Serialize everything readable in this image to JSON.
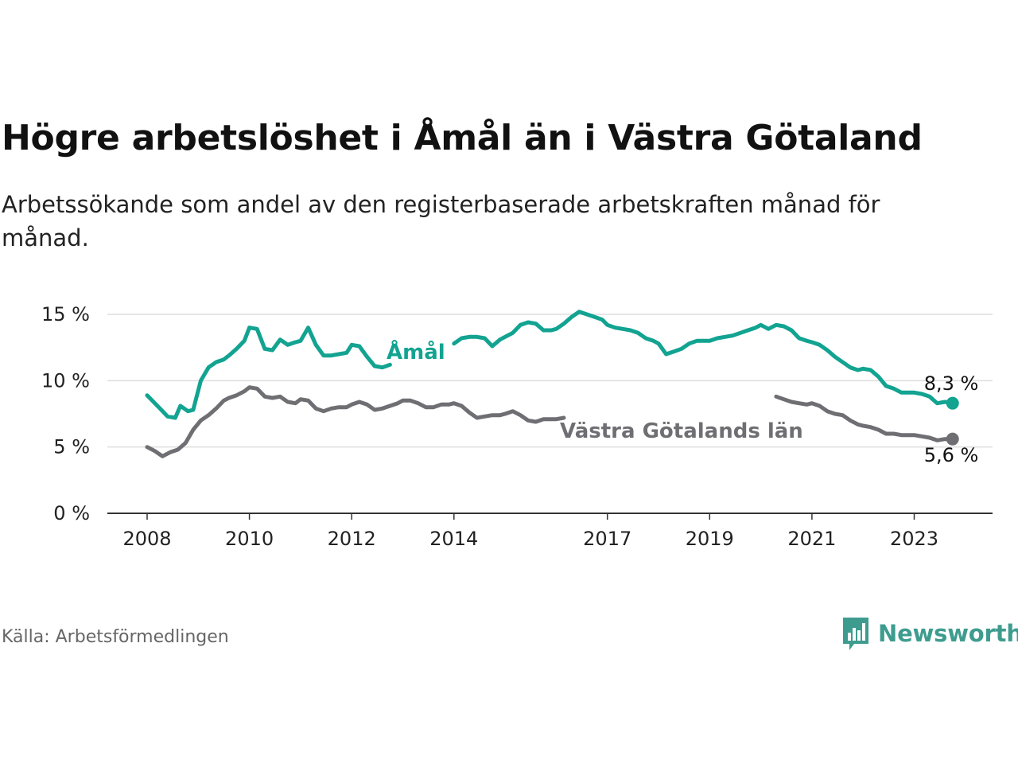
{
  "title": "Högre arbetslöshet i Åmål än i Västra Götaland",
  "subtitle": "Arbetssökande som andel av den registerbaserade arbetskraften månad för månad.",
  "source": "Källa: Arbetsförmedlingen",
  "brand": {
    "name": "Newsworthy",
    "icon": "newsworthy-logo-icon",
    "color": "#3e9c8f"
  },
  "chart_data": {
    "type": "line",
    "title": "Högre arbetslöshet i Åmål än i Västra Götaland",
    "xlabel": "",
    "ylabel": "",
    "xlim": [
      2008,
      2024.1
    ],
    "ylim": [
      0,
      15
    ],
    "grid": true,
    "y_ticks": [
      {
        "value": 0,
        "label": "0 %"
      },
      {
        "value": 5,
        "label": "5 %"
      },
      {
        "value": 10,
        "label": "10 %"
      },
      {
        "value": 15,
        "label": "15 %"
      }
    ],
    "x_ticks": [
      {
        "value": 2008,
        "label": "2008"
      },
      {
        "value": 2010,
        "label": "2010"
      },
      {
        "value": 2012,
        "label": "2012"
      },
      {
        "value": 2014,
        "label": "2014"
      },
      {
        "value": 2017,
        "label": "2017"
      },
      {
        "value": 2019,
        "label": "2019"
      },
      {
        "value": 2021,
        "label": "2021"
      },
      {
        "value": 2023,
        "label": "2023"
      }
    ],
    "series": [
      {
        "name": "Åmål",
        "label": "Åmål",
        "color": "#12a391",
        "end_label": "8,3 %",
        "x": [
          2008.0,
          2008.25,
          2008.4,
          2008.55,
          2008.65,
          2008.8,
          2008.9,
          2009.05,
          2009.2,
          2009.35,
          2009.5,
          2009.6,
          2009.75,
          2009.9,
          2010.0,
          2010.15,
          2010.3,
          2010.45,
          2010.6,
          2010.75,
          2010.9,
          2011.0,
          2011.15,
          2011.3,
          2011.45,
          2011.6,
          2011.75,
          2011.9,
          2012.0,
          2012.15,
          2012.3,
          2012.45,
          2012.6,
          2012.75,
          2012.9,
          2013.0,
          2013.15,
          2013.3,
          2013.45,
          2013.6,
          2013.75,
          2013.9,
          2014.0,
          2014.15,
          2014.3,
          2014.45,
          2014.6,
          2014.75,
          2014.9,
          2015.0,
          2015.15,
          2015.3,
          2015.45,
          2015.6,
          2015.75,
          2015.9,
          2016.0,
          2016.15,
          2016.3,
          2016.45,
          2016.6,
          2016.75,
          2016.9,
          2017.0,
          2017.15,
          2017.3,
          2017.45,
          2017.6,
          2017.75,
          2017.9,
          2018.0,
          2018.15,
          2018.3,
          2018.45,
          2018.6,
          2018.75,
          2018.9,
          2019.0,
          2019.15,
          2019.3,
          2019.45,
          2019.6,
          2019.75,
          2019.9,
          2020.0,
          2020.15,
          2020.3,
          2020.45,
          2020.6,
          2020.75,
          2020.9,
          2021.0,
          2021.15,
          2021.3,
          2021.45,
          2021.6,
          2021.75,
          2021.9,
          2022.0,
          2022.15,
          2022.3,
          2022.45,
          2022.6,
          2022.75,
          2022.9,
          2023.0,
          2023.15,
          2023.3,
          2023.45,
          2023.6,
          2023.75
        ],
        "y": [
          8.9,
          7.9,
          7.3,
          7.2,
          8.1,
          7.7,
          7.8,
          10.0,
          11.0,
          11.4,
          11.6,
          11.9,
          12.4,
          13.0,
          14.0,
          13.9,
          12.4,
          12.3,
          13.1,
          12.7,
          12.9,
          13.0,
          14.0,
          12.7,
          11.9,
          11.9,
          12.0,
          12.1,
          12.7,
          12.6,
          11.8,
          11.1,
          11.0,
          11.2,
          12.0,
          12.8,
          13.2,
          13.1,
          12.6,
          11.9,
          12.0,
          12.1,
          12.8,
          13.2,
          13.3,
          13.3,
          13.2,
          12.6,
          13.1,
          13.3,
          13.6,
          14.2,
          14.4,
          14.3,
          13.8,
          13.8,
          13.9,
          14.3,
          14.8,
          15.2,
          15.0,
          14.8,
          14.6,
          14.2,
          14.0,
          13.9,
          13.8,
          13.6,
          13.2,
          13.0,
          12.8,
          12.0,
          12.2,
          12.4,
          12.8,
          13.0,
          13.0,
          13.0,
          13.2,
          13.3,
          13.4,
          13.6,
          13.8,
          14.0,
          14.2,
          13.9,
          14.2,
          14.1,
          13.8,
          13.2,
          13.0,
          12.9,
          12.7,
          12.3,
          11.8,
          11.4,
          11.0,
          10.8,
          10.9,
          10.8,
          10.3,
          9.6,
          9.4,
          9.1,
          9.1,
          9.1,
          9.0,
          8.8,
          8.3,
          8.4,
          8.3
        ],
        "gaps": [
          [
            2012.85,
            2013.95
          ]
        ]
      },
      {
        "name": "Västra Götalands län",
        "label": "Västra Götalands län",
        "color": "#6f6e73",
        "end_label": "5,6 %",
        "x": [
          2008.0,
          2008.15,
          2008.3,
          2008.45,
          2008.6,
          2008.75,
          2008.9,
          2009.05,
          2009.2,
          2009.35,
          2009.5,
          2009.6,
          2009.75,
          2009.9,
          2010.0,
          2010.15,
          2010.3,
          2010.45,
          2010.6,
          2010.75,
          2010.9,
          2011.0,
          2011.15,
          2011.3,
          2011.45,
          2011.6,
          2011.75,
          2011.9,
          2012.0,
          2012.15,
          2012.3,
          2012.45,
          2012.6,
          2012.75,
          2012.9,
          2013.0,
          2013.15,
          2013.3,
          2013.45,
          2013.6,
          2013.75,
          2013.9,
          2014.0,
          2014.15,
          2014.3,
          2014.45,
          2014.6,
          2014.75,
          2014.9,
          2015.0,
          2015.15,
          2015.3,
          2015.45,
          2015.6,
          2015.75,
          2015.9,
          2016.0,
          2016.15,
          2016.3,
          2016.45,
          2016.6,
          2016.75,
          2016.9,
          2017.0,
          2017.15,
          2017.3,
          2017.45,
          2017.6,
          2017.75,
          2017.9,
          2018.0,
          2018.15,
          2018.3,
          2018.45,
          2018.6,
          2018.75,
          2018.9,
          2019.0,
          2019.15,
          2019.3,
          2019.45,
          2019.6,
          2019.75,
          2019.9,
          2020.0,
          2020.15,
          2020.3,
          2020.45,
          2020.6,
          2020.75,
          2020.9,
          2021.0,
          2021.15,
          2021.3,
          2021.45,
          2021.6,
          2021.75,
          2021.9,
          2022.0,
          2022.15,
          2022.3,
          2022.45,
          2022.6,
          2022.75,
          2022.9,
          2023.0,
          2023.15,
          2023.3,
          2023.45,
          2023.6,
          2023.75
        ],
        "y": [
          5.0,
          4.7,
          4.3,
          4.6,
          4.8,
          5.3,
          6.3,
          7.0,
          7.4,
          7.9,
          8.5,
          8.7,
          8.9,
          9.2,
          9.5,
          9.4,
          8.8,
          8.7,
          8.8,
          8.4,
          8.3,
          8.6,
          8.5,
          7.9,
          7.7,
          7.9,
          8.0,
          8.0,
          8.2,
          8.4,
          8.2,
          7.8,
          7.9,
          8.1,
          8.3,
          8.5,
          8.5,
          8.3,
          8.0,
          8.0,
          8.2,
          8.2,
          8.3,
          8.1,
          7.6,
          7.2,
          7.3,
          7.4,
          7.4,
          7.5,
          7.7,
          7.4,
          7.0,
          6.9,
          7.1,
          7.1,
          7.1,
          7.2,
          7.3,
          7.3,
          7.3,
          7.4,
          7.5,
          7.6,
          7.7,
          7.7,
          7.6,
          7.6,
          7.5,
          7.5,
          7.4,
          7.3,
          7.2,
          7.2,
          7.1,
          7.1,
          7.0,
          7.0,
          7.1,
          7.2,
          7.2,
          7.3,
          7.4,
          7.5,
          7.6,
          8.2,
          8.8,
          8.6,
          8.4,
          8.3,
          8.2,
          8.3,
          8.1,
          7.7,
          7.5,
          7.4,
          7.0,
          6.7,
          6.6,
          6.5,
          6.3,
          6.0,
          6.0,
          5.9,
          5.9,
          5.9,
          5.8,
          5.7,
          5.5,
          5.6,
          5.6
        ],
        "gaps": [
          [
            2016.15,
            2020.2
          ]
        ]
      }
    ]
  }
}
